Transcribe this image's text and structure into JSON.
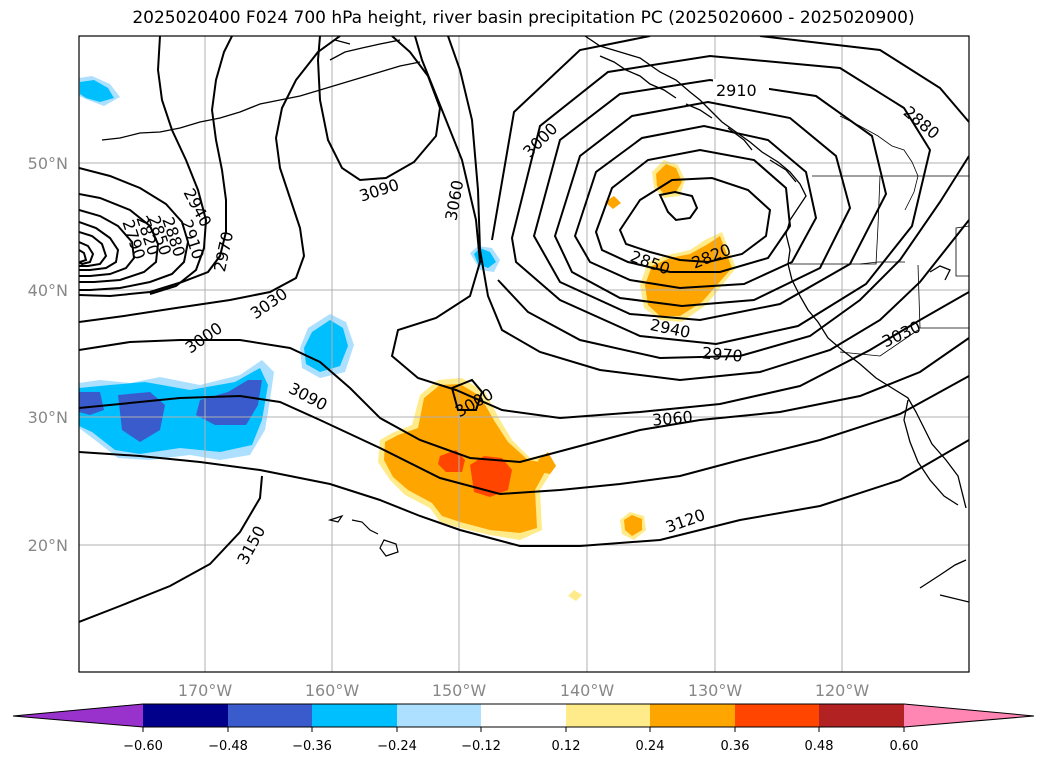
{
  "title": "2025020400 F024 700 hPa height, river basin precipitation PC (2025020600 - 2025020900)",
  "lat_labels": [
    "50°N",
    "40°N",
    "30°N",
    "20°N"
  ],
  "lon_labels": [
    "170°W",
    "160°W",
    "150°W",
    "140°W",
    "130°W",
    "120°W"
  ],
  "colorbar": {
    "ticks": [
      "−0.60",
      "−0.48",
      "−0.36",
      "−0.24",
      "−0.12",
      "0.12",
      "0.24",
      "0.36",
      "0.48",
      "0.60"
    ],
    "colors": [
      "#9932CC",
      "#00008B",
      "#3A5BCC",
      "#00BFFF",
      "#ADE0FF",
      "#FFFFFF",
      "#FFEB8A",
      "#FFA500",
      "#FF4500",
      "#B22222",
      "#FF85B3"
    ]
  },
  "contour_labels": [
    "2910",
    "2880",
    "3000",
    "3090",
    "3060",
    "2820",
    "2850",
    "2940",
    "2970",
    "3030",
    "3000",
    "3060",
    "3120",
    "3090",
    "3150",
    "2940",
    "2910",
    "2880",
    "2850",
    "2820",
    "2790",
    "2970",
    "3030",
    "3000"
  ]
}
